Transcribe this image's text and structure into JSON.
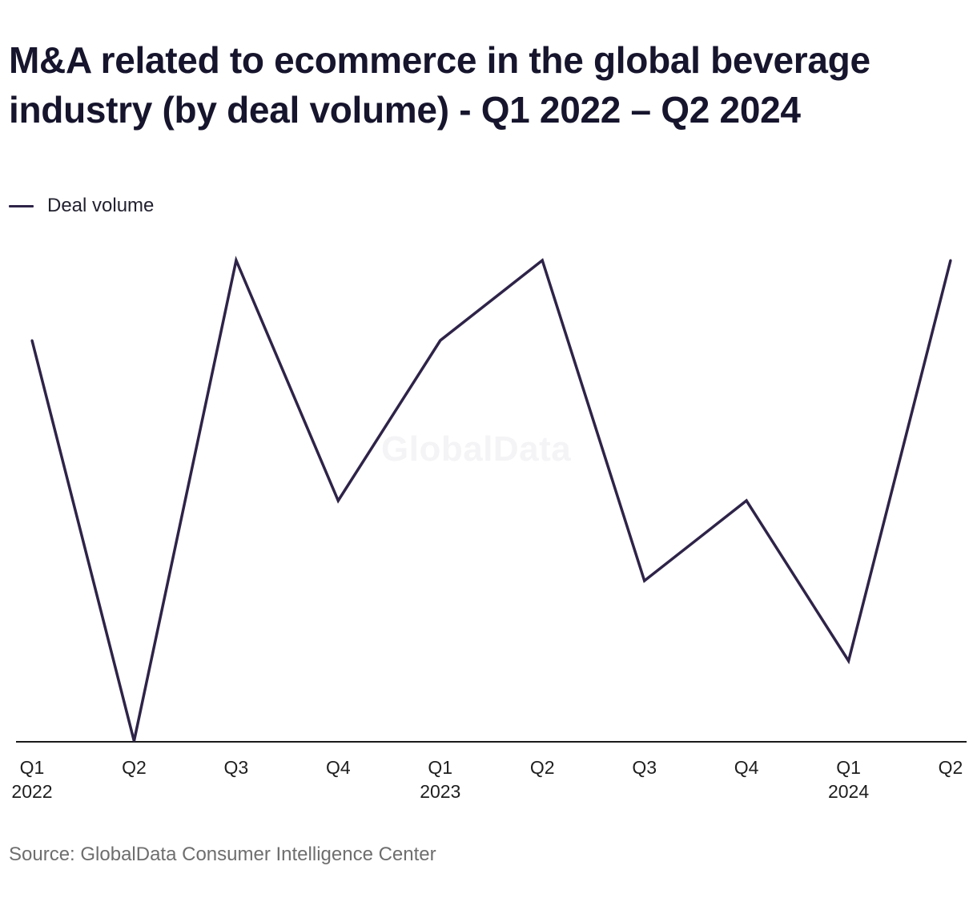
{
  "title": "M&A related to ecommerce in the global beverage industry (by deal volume) - Q1 2022 – Q2 2024",
  "watermark": "GlobalData",
  "source": "Source: GlobalData Consumer Intelligence Center",
  "colors": {
    "series_line": "#2e2348",
    "axis": "#1a1a1a",
    "tick_text": "#1e1e1e"
  },
  "chart_data": {
    "type": "line",
    "title": "M&A related to ecommerce in the global beverage industry (by deal volume) - Q1 2022 – Q2 2024",
    "xlabel": "",
    "ylabel": "",
    "ylim": [
      0,
      6
    ],
    "grid": false,
    "legend_position": "top-left",
    "categories": [
      "Q1 2022",
      "Q2 2022",
      "Q3 2022",
      "Q4 2022",
      "Q1 2023",
      "Q2 2023",
      "Q3 2023",
      "Q4 2023",
      "Q1 2024",
      "Q2 2024"
    ],
    "tick_labels": [
      {
        "quarter": "Q1",
        "year": "2022"
      },
      {
        "quarter": "Q2",
        "year": ""
      },
      {
        "quarter": "Q3",
        "year": ""
      },
      {
        "quarter": "Q4",
        "year": ""
      },
      {
        "quarter": "Q1",
        "year": "2023"
      },
      {
        "quarter": "Q2",
        "year": ""
      },
      {
        "quarter": "Q3",
        "year": ""
      },
      {
        "quarter": "Q4",
        "year": ""
      },
      {
        "quarter": "Q1",
        "year": "2024"
      },
      {
        "quarter": "Q2",
        "year": ""
      }
    ],
    "series": [
      {
        "name": "Deal volume",
        "values": [
          5,
          0,
          6,
          3,
          5,
          6,
          2,
          3,
          1,
          6
        ]
      }
    ]
  }
}
